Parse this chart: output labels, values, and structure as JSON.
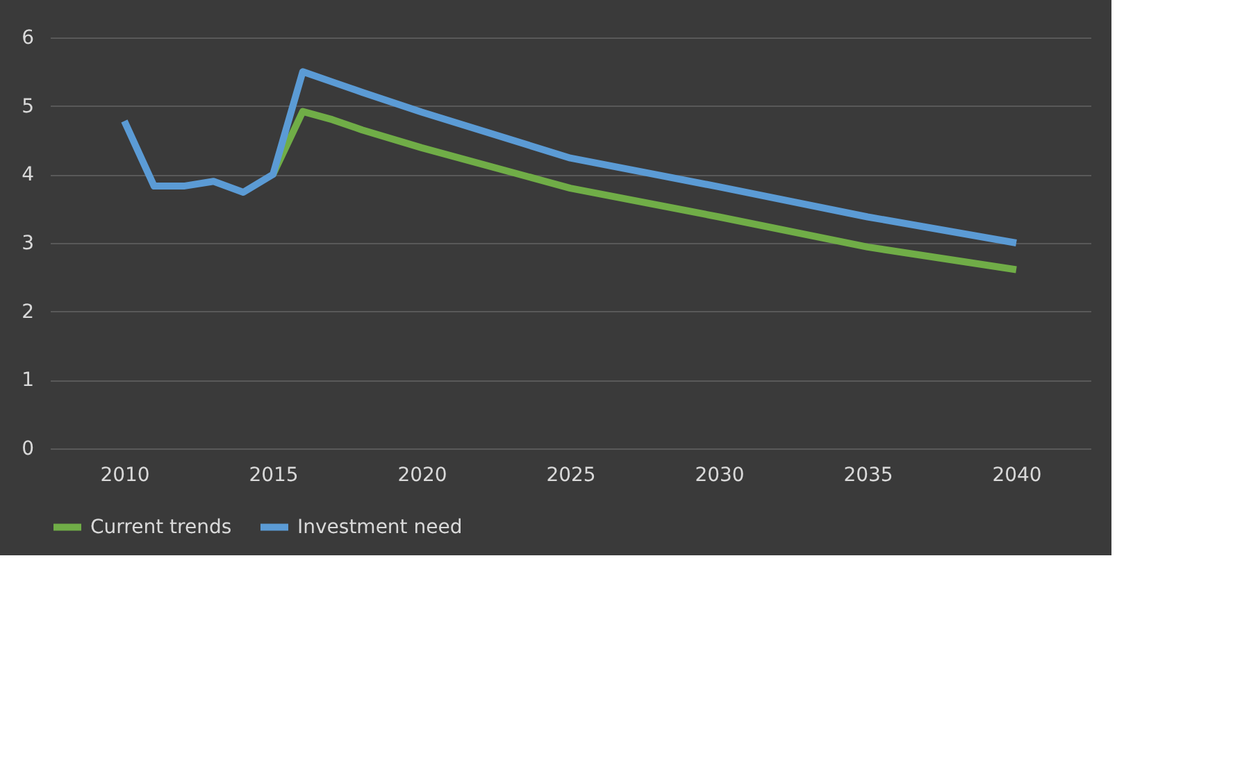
{
  "chart_data": {
    "type": "line",
    "series": [
      {
        "name": "Current trends",
        "color": "#70ad47",
        "x": [
          2015,
          2016,
          2017,
          2018,
          2020,
          2025,
          2030,
          2035,
          2040
        ],
        "values": [
          4.0,
          4.92,
          4.8,
          4.65,
          4.39,
          3.8,
          3.38,
          2.94,
          2.61
        ]
      },
      {
        "name": "Investment need",
        "color": "#5b9bd5",
        "x": [
          2010,
          2011,
          2012,
          2013,
          2014,
          2015,
          2016,
          2017,
          2018,
          2020,
          2025,
          2030,
          2035,
          2040
        ],
        "values": [
          4.78,
          3.83,
          3.83,
          3.9,
          3.74,
          4.0,
          5.5,
          5.35,
          5.2,
          4.91,
          4.24,
          3.82,
          3.38,
          3.0
        ]
      }
    ],
    "xlim": [
      2007.5,
      2042.5
    ],
    "xticks": [
      2010,
      2015,
      2020,
      2025,
      2030,
      2035,
      2040
    ],
    "ylim": [
      0,
      6
    ],
    "yticks": [
      0,
      1,
      2,
      3,
      4,
      5,
      6
    ],
    "grid": "y",
    "legend": "bottom",
    "line_style": "solid",
    "marker": "none"
  }
}
